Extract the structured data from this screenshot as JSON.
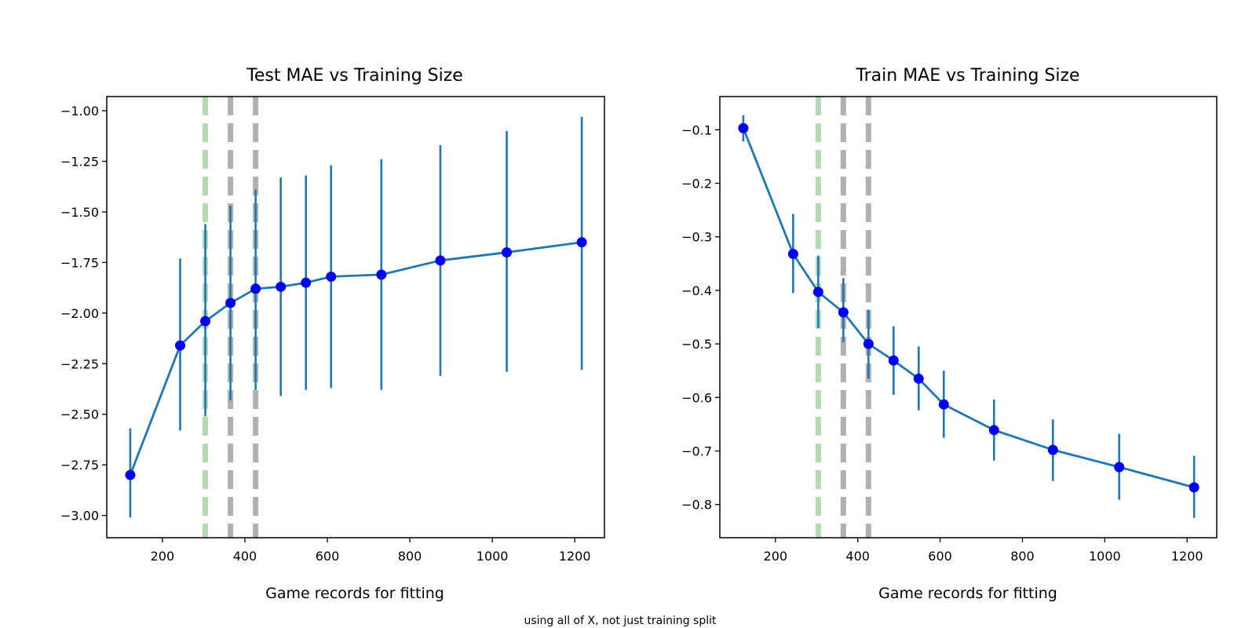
{
  "figure": {
    "caption": "using all of X, not just training split"
  },
  "chart_data": [
    {
      "type": "line",
      "title": "Test MAE vs Training Size",
      "xlabel": "Game records for fitting",
      "ylabel": "",
      "xlim": [
        65,
        1272
      ],
      "ylim": [
        -3.11,
        -0.93
      ],
      "xticks": [
        200,
        400,
        600,
        800,
        1000,
        1200
      ],
      "yticks": [
        -3.0,
        -2.75,
        -2.5,
        -2.25,
        -2.0,
        -1.75,
        -1.5,
        -1.25,
        -1.0
      ],
      "ytick_labels": [
        "−3.00",
        "−2.75",
        "−2.50",
        "−2.25",
        "−2.00",
        "−1.75",
        "−1.50",
        "−1.25",
        "−1.00"
      ],
      "vlines": [
        {
          "x": 304,
          "color": "#b3dbb3"
        },
        {
          "x": 365,
          "color": "#b0b0b0"
        },
        {
          "x": 426,
          "color": "#b0b0b0"
        }
      ],
      "series": [
        {
          "line_color": "#1f77b4",
          "marker_color": "#0000ee",
          "x": [
            122,
            243,
            304,
            365,
            426,
            487,
            548,
            609,
            731,
            874,
            1035,
            1217
          ],
          "y": [
            -2.8,
            -2.16,
            -2.04,
            -1.95,
            -1.88,
            -1.87,
            -1.85,
            -1.82,
            -1.81,
            -1.74,
            -1.7,
            -1.65
          ],
          "err_low": [
            -3.01,
            -2.58,
            -2.51,
            -2.43,
            -2.38,
            -2.41,
            -2.38,
            -2.37,
            -2.38,
            -2.31,
            -2.29,
            -2.28
          ],
          "err_high": [
            -2.57,
            -1.73,
            -1.56,
            -1.47,
            -1.39,
            -1.33,
            -1.32,
            -1.27,
            -1.24,
            -1.17,
            -1.1,
            -1.03
          ]
        }
      ]
    },
    {
      "type": "line",
      "title": "Train MAE vs Training Size",
      "xlabel": "Game records for fitting",
      "ylabel": "",
      "xlim": [
        65,
        1272
      ],
      "ylim": [
        -0.862,
        -0.038
      ],
      "xticks": [
        200,
        400,
        600,
        800,
        1000,
        1200
      ],
      "yticks": [
        -0.8,
        -0.7,
        -0.6,
        -0.5,
        -0.4,
        -0.3,
        -0.2,
        -0.1
      ],
      "ytick_labels": [
        "−0.8",
        "−0.7",
        "−0.6",
        "−0.5",
        "−0.4",
        "−0.3",
        "−0.2",
        "−0.1"
      ],
      "vlines": [
        {
          "x": 304,
          "color": "#b3dbb3"
        },
        {
          "x": 365,
          "color": "#b0b0b0"
        },
        {
          "x": 426,
          "color": "#b0b0b0"
        }
      ],
      "series": [
        {
          "line_color": "#1f77b4",
          "marker_color": "#0000ee",
          "x": [
            122,
            243,
            304,
            365,
            426,
            487,
            548,
            609,
            731,
            874,
            1035,
            1217
          ],
          "y": [
            -0.097,
            -0.332,
            -0.403,
            -0.441,
            -0.5,
            -0.531,
            -0.565,
            -0.613,
            -0.661,
            -0.698,
            -0.73,
            -0.768
          ],
          "err_low": [
            -0.122,
            -0.405,
            -0.47,
            -0.497,
            -0.565,
            -0.595,
            -0.624,
            -0.675,
            -0.718,
            -0.756,
            -0.791,
            -0.825
          ],
          "err_high": [
            -0.073,
            -0.257,
            -0.335,
            -0.377,
            -0.436,
            -0.467,
            -0.505,
            -0.55,
            -0.604,
            -0.641,
            -0.668,
            -0.709
          ]
        }
      ]
    }
  ]
}
